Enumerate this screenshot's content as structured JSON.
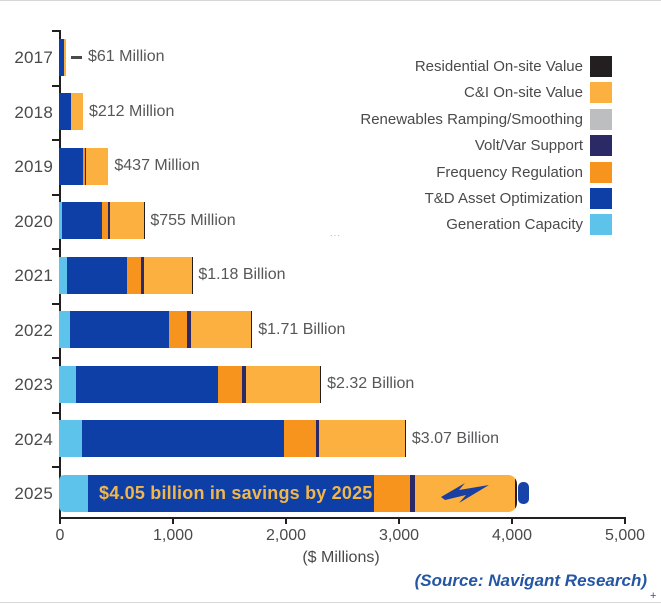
{
  "chart_data": {
    "type": "bar",
    "orientation": "horizontal",
    "xlabel": "($ Millions)",
    "xlim": [
      0,
      5000
    ],
    "x_ticks": [
      "0",
      "1,000",
      "2,000",
      "3,000",
      "4,000",
      "5,000"
    ],
    "x_tick_values": [
      0,
      1000,
      2000,
      3000,
      4000,
      5000
    ],
    "grid": false,
    "categories": [
      "2017",
      "2018",
      "2019",
      "2020",
      "2021",
      "2022",
      "2023",
      "2024",
      "2025"
    ],
    "totals": [
      61,
      212,
      437,
      755,
      1180,
      1710,
      2320,
      3070,
      4050
    ],
    "total_labels": [
      "$61 Million",
      "$212 Million",
      "$437 Million",
      "$755 Million",
      "$1.18 Billion",
      "$1.71 Billion",
      "$2.32 Billion",
      "$3.07 Billion",
      ""
    ],
    "series": [
      {
        "name": "Generation Capacity",
        "color": "#5ec3ea",
        "values": [
          0,
          0,
          0,
          27,
          70,
          100,
          150,
          205,
          255
        ]
      },
      {
        "name": "T&D Asset Optimization",
        "color": "#0d3fa6",
        "values": [
          40,
          102,
          215,
          354,
          530,
          870,
          1260,
          1785,
          2530
        ]
      },
      {
        "name": "Frequency Regulation",
        "color": "#f7941e",
        "values": [
          0,
          0,
          14,
          53,
          125,
          160,
          210,
          285,
          320
        ]
      },
      {
        "name": "Volt/Var Support",
        "color": "#2b2a66",
        "values": [
          0,
          0,
          14,
          18,
          27,
          35,
          35,
          27,
          44
        ]
      },
      {
        "name": "Renewables Ramping/Smoothing",
        "color": "#bcbec0",
        "values": [
          0,
          0,
          0,
          0,
          0,
          0,
          0,
          0,
          0
        ]
      },
      {
        "name": "C&I On-site Value",
        "color": "#fbb040",
        "values": [
          21,
          110,
          194,
          300,
          423,
          538,
          657,
          760,
          891
        ]
      },
      {
        "name": "Residential On-site Value",
        "color": "#231f20",
        "values": [
          0,
          0,
          0,
          3,
          5,
          7,
          8,
          8,
          10
        ]
      }
    ],
    "annotation_2025": "$4.05 billion in savings by 2025",
    "source": "(Source: Navigant Research)"
  },
  "legend": {
    "items": [
      {
        "label": "Residential On-site Value",
        "color": "#231f20"
      },
      {
        "label": "C&I On-site Value",
        "color": "#fbb040"
      },
      {
        "label": "Renewables Ramping/Smoothing",
        "color": "#bcbec0"
      },
      {
        "label": "Volt/Var Support",
        "color": "#2b2a66"
      },
      {
        "label": "Frequency Regulation",
        "color": "#f7941e"
      },
      {
        "label": "T&D Asset Optimization",
        "color": "#0d3fa6"
      },
      {
        "label": "Generation Capacity",
        "color": "#5ec3ea"
      }
    ]
  },
  "marks": {
    "small_dots": "···",
    "plus_sign": "+"
  }
}
